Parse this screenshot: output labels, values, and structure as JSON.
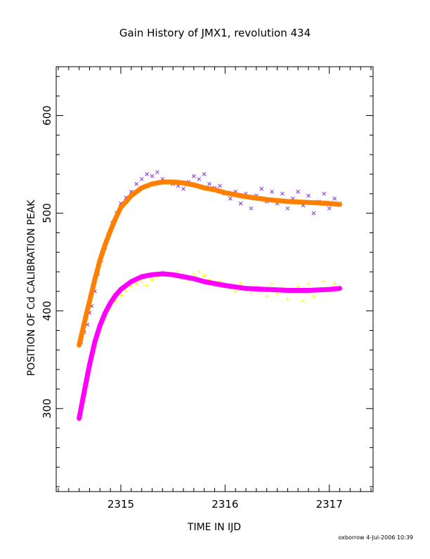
{
  "chart_data": {
    "type": "scatter",
    "title": "Gain History of JMX1, revolution 434",
    "xlabel": "TIME IN IJD",
    "ylabel": "POSITION OF Cd CALIBRATION PEAK",
    "xlim": [
      2314.38,
      2317.42
    ],
    "ylim": [
      215,
      650
    ],
    "xticks": [
      2315,
      2316,
      2317
    ],
    "yticks": [
      300,
      400,
      500,
      600
    ],
    "grid": false,
    "legend": "none",
    "series": [
      {
        "marker": "x",
        "color": "#8a2be2",
        "points": [
          [
            2314.62,
            368
          ],
          [
            2314.65,
            378
          ],
          [
            2314.68,
            386
          ],
          [
            2314.7,
            398
          ],
          [
            2314.72,
            405
          ],
          [
            2314.75,
            420
          ],
          [
            2314.78,
            438
          ],
          [
            2314.81,
            452
          ],
          [
            2314.85,
            465
          ],
          [
            2314.88,
            478
          ],
          [
            2314.92,
            490
          ],
          [
            2314.96,
            500
          ],
          [
            2315.0,
            510
          ],
          [
            2315.05,
            516
          ],
          [
            2315.1,
            522
          ],
          [
            2315.15,
            530
          ],
          [
            2315.2,
            535
          ],
          [
            2315.25,
            540
          ],
          [
            2315.3,
            538
          ],
          [
            2315.35,
            542
          ],
          [
            2315.4,
            535
          ],
          [
            2315.45,
            532
          ],
          [
            2315.5,
            530
          ],
          [
            2315.55,
            528
          ],
          [
            2315.6,
            525
          ],
          [
            2315.65,
            532
          ],
          [
            2315.7,
            538
          ],
          [
            2315.75,
            535
          ],
          [
            2315.8,
            540
          ],
          [
            2315.85,
            530
          ],
          [
            2315.9,
            526
          ],
          [
            2315.95,
            528
          ],
          [
            2316.0,
            520
          ],
          [
            2316.05,
            515
          ],
          [
            2316.1,
            522
          ],
          [
            2316.15,
            510
          ],
          [
            2316.2,
            520
          ],
          [
            2316.25,
            505
          ],
          [
            2316.3,
            518
          ],
          [
            2316.35,
            525
          ],
          [
            2316.4,
            512
          ],
          [
            2316.45,
            522
          ],
          [
            2316.5,
            510
          ],
          [
            2316.55,
            520
          ],
          [
            2316.6,
            505
          ],
          [
            2316.65,
            515
          ],
          [
            2316.7,
            522
          ],
          [
            2316.75,
            508
          ],
          [
            2316.8,
            518
          ],
          [
            2316.85,
            500
          ],
          [
            2316.9,
            512
          ],
          [
            2316.95,
            520
          ],
          [
            2317.0,
            505
          ],
          [
            2317.05,
            515
          ],
          [
            2317.1,
            510
          ]
        ]
      },
      {
        "marker": "+",
        "color": "#ffff00",
        "points": [
          [
            2314.62,
            300
          ],
          [
            2314.65,
            318
          ],
          [
            2314.68,
            332
          ],
          [
            2314.72,
            350
          ],
          [
            2314.76,
            365
          ],
          [
            2314.8,
            380
          ],
          [
            2314.85,
            392
          ],
          [
            2314.9,
            402
          ],
          [
            2314.95,
            410
          ],
          [
            2315.0,
            416
          ],
          [
            2315.05,
            420
          ],
          [
            2315.1,
            425
          ],
          [
            2315.15,
            428
          ],
          [
            2315.2,
            430
          ],
          [
            2315.25,
            426
          ],
          [
            2315.3,
            432
          ],
          [
            2315.35,
            435
          ],
          [
            2315.4,
            440
          ],
          [
            2315.45,
            438
          ],
          [
            2315.5,
            436
          ],
          [
            2315.55,
            440
          ],
          [
            2315.6,
            434
          ],
          [
            2315.65,
            432
          ],
          [
            2315.7,
            438
          ],
          [
            2315.75,
            440
          ],
          [
            2315.8,
            436
          ],
          [
            2315.85,
            432
          ],
          [
            2315.9,
            428
          ],
          [
            2315.95,
            430
          ],
          [
            2316.0,
            426
          ],
          [
            2316.05,
            424
          ],
          [
            2316.1,
            420
          ],
          [
            2316.15,
            428
          ],
          [
            2316.2,
            422
          ],
          [
            2316.25,
            418
          ],
          [
            2316.3,
            425
          ],
          [
            2316.35,
            420
          ],
          [
            2316.4,
            415
          ],
          [
            2316.45,
            428
          ],
          [
            2316.5,
            418
          ],
          [
            2316.55,
            424
          ],
          [
            2316.6,
            412
          ],
          [
            2316.65,
            420
          ],
          [
            2316.7,
            425
          ],
          [
            2316.75,
            410
          ],
          [
            2316.8,
            428
          ],
          [
            2316.85,
            415
          ],
          [
            2316.9,
            422
          ],
          [
            2316.95,
            430
          ],
          [
            2317.0,
            420
          ],
          [
            2317.05,
            428
          ],
          [
            2317.1,
            425
          ]
        ]
      },
      {
        "marker": "line",
        "color": "#ff7f00",
        "points": [
          [
            2314.6,
            365
          ],
          [
            2314.65,
            388
          ],
          [
            2314.7,
            410
          ],
          [
            2314.75,
            432
          ],
          [
            2314.8,
            452
          ],
          [
            2314.85,
            468
          ],
          [
            2314.9,
            482
          ],
          [
            2314.95,
            495
          ],
          [
            2315.0,
            506
          ],
          [
            2315.1,
            518
          ],
          [
            2315.2,
            526
          ],
          [
            2315.3,
            530
          ],
          [
            2315.4,
            532
          ],
          [
            2315.5,
            532
          ],
          [
            2315.6,
            531
          ],
          [
            2315.7,
            529
          ],
          [
            2315.8,
            526
          ],
          [
            2315.9,
            524
          ],
          [
            2316.0,
            521
          ],
          [
            2316.2,
            517
          ],
          [
            2316.4,
            514
          ],
          [
            2316.6,
            512
          ],
          [
            2316.8,
            511
          ],
          [
            2317.0,
            510
          ],
          [
            2317.1,
            509
          ]
        ]
      },
      {
        "marker": "line",
        "color": "#ff00ff",
        "points": [
          [
            2314.6,
            290
          ],
          [
            2314.65,
            318
          ],
          [
            2314.7,
            345
          ],
          [
            2314.75,
            368
          ],
          [
            2314.8,
            385
          ],
          [
            2314.85,
            398
          ],
          [
            2314.9,
            408
          ],
          [
            2314.95,
            416
          ],
          [
            2315.0,
            422
          ],
          [
            2315.1,
            430
          ],
          [
            2315.2,
            435
          ],
          [
            2315.3,
            437
          ],
          [
            2315.4,
            438
          ],
          [
            2315.5,
            437
          ],
          [
            2315.6,
            435
          ],
          [
            2315.7,
            433
          ],
          [
            2315.8,
            430
          ],
          [
            2315.9,
            428
          ],
          [
            2316.0,
            426
          ],
          [
            2316.2,
            423
          ],
          [
            2316.4,
            422
          ],
          [
            2316.6,
            421
          ],
          [
            2316.8,
            421
          ],
          [
            2317.0,
            422
          ],
          [
            2317.1,
            423
          ]
        ]
      }
    ]
  },
  "footer": {
    "stamp": "oxborrow   4-Jul-2006 10:39"
  }
}
